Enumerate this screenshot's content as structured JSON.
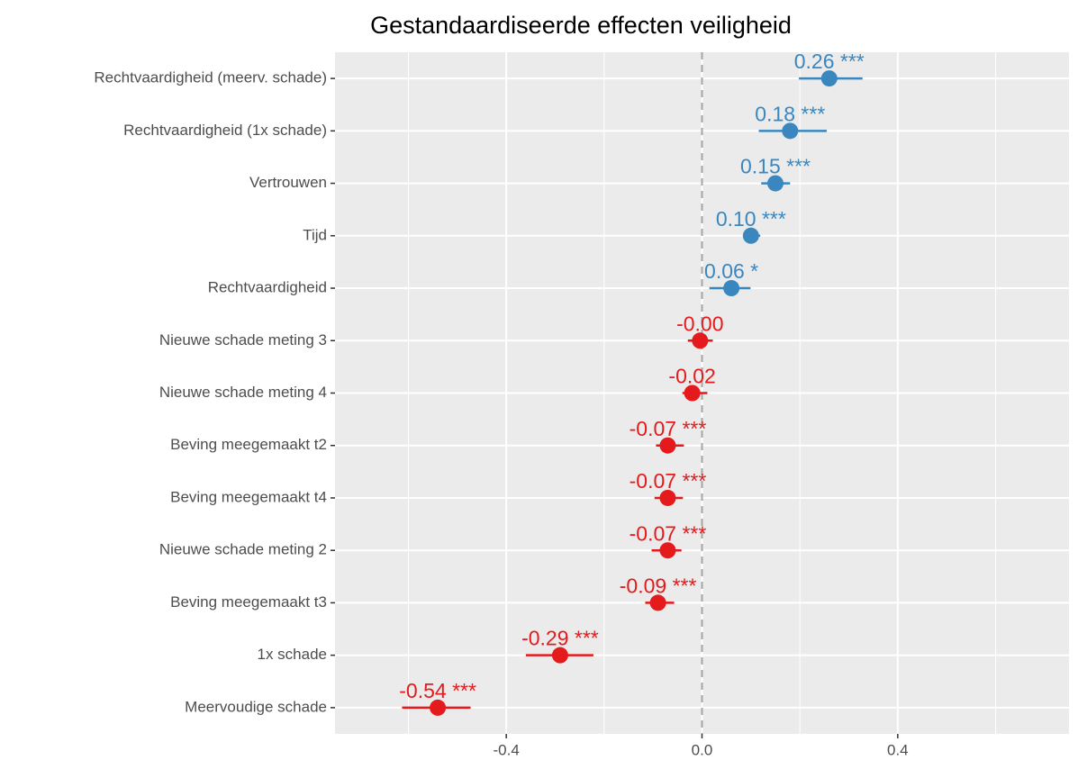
{
  "chart_data": {
    "type": "forest",
    "title": "Gestandaardiseerde effecten veiligheid",
    "categories": [
      "Rechtvaardigheid (meerv. schade)",
      "Rechtvaardigheid (1x schade)",
      "Vertrouwen",
      "Tijd",
      "Rechtvaardigheid",
      "Nieuwe schade meting 3",
      "Nieuwe schade meting 4",
      "Beving meegemaakt t2",
      "Beving meegemaakt t4",
      "Nieuwe schade meting 2",
      "Beving meegemaakt t3",
      "1x schade",
      "Meervoudige schade"
    ],
    "values": [
      0.26,
      0.18,
      0.15,
      0.1,
      0.06,
      -0.004,
      -0.02,
      -0.07,
      -0.07,
      -0.07,
      -0.09,
      -0.29,
      -0.54
    ],
    "value_labels": [
      "0.26 ***",
      "0.18 ***",
      "0.15 ***",
      "0.10 ***",
      "0.06 *",
      "-0.00",
      "-0.02",
      "-0.07 ***",
      "-0.07 ***",
      "-0.07 ***",
      "-0.09 ***",
      "-0.29 ***",
      "-0.54 ***"
    ],
    "lower": [
      0.198,
      0.116,
      0.121,
      0.086,
      0.015,
      -0.029,
      -0.04,
      -0.094,
      -0.097,
      -0.103,
      -0.116,
      -0.36,
      -0.613
    ],
    "upper": [
      0.328,
      0.255,
      0.18,
      0.119,
      0.099,
      0.022,
      0.011,
      -0.037,
      -0.039,
      -0.042,
      -0.057,
      -0.222,
      -0.473
    ],
    "colors": [
      "#3a87c0",
      "#3a87c0",
      "#3a87c0",
      "#3a87c0",
      "#3a87c0",
      "#e41a1c",
      "#e41a1c",
      "#e41a1c",
      "#e41a1c",
      "#e41a1c",
      "#e41a1c",
      "#e41a1c",
      "#e41a1c"
    ],
    "xlim": [
      -0.75,
      0.75
    ],
    "xticks": [
      -0.4,
      {
        "value": 0,
        "label": "0.0"
      },
      0.4
    ],
    "xminor": [
      -0.6,
      -0.2,
      0.2,
      0.6
    ],
    "refline": 0,
    "grid": true
  }
}
